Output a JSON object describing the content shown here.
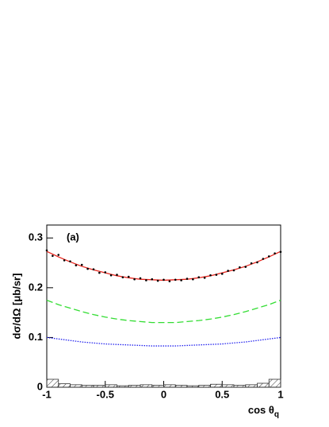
{
  "chart_data": {
    "type": "line",
    "annotation": "(a)",
    "y_label": "dσ/dΩ [μb/sr]",
    "x_label": {
      "text": "cos θ",
      "subscript": "q"
    },
    "xlim": [
      -1,
      1
    ],
    "ylim": [
      0,
      0.326
    ],
    "xticks": [
      -1,
      -0.5,
      0,
      0.5,
      1
    ],
    "yticks": [
      0,
      0.1,
      0.2,
      0.3
    ],
    "x": [
      -1,
      -0.9,
      -0.8,
      -0.7,
      -0.6,
      -0.5,
      -0.4,
      -0.3,
      -0.2,
      -0.1,
      0,
      0.1,
      0.2,
      0.3,
      0.4,
      0.5,
      0.6,
      0.7,
      0.8,
      0.9,
      1
    ],
    "series": [
      {
        "color": "#e8251d",
        "dash": "solid",
        "values": [
          0.273,
          0.262,
          0.252,
          0.243,
          0.236,
          0.23,
          0.224,
          0.22,
          0.217,
          0.216,
          0.215,
          0.216,
          0.217,
          0.22,
          0.224,
          0.23,
          0.236,
          0.243,
          0.252,
          0.262,
          0.273
        ]
      },
      {
        "color": "#33dd33",
        "dash": "dashed",
        "values": [
          0.175,
          0.166,
          0.159,
          0.152,
          0.146,
          0.141,
          0.137,
          0.134,
          0.132,
          0.13,
          0.13,
          0.13,
          0.132,
          0.134,
          0.137,
          0.141,
          0.146,
          0.152,
          0.159,
          0.166,
          0.175
        ]
      },
      {
        "color": "#2222ee",
        "dash": "dotted",
        "values": [
          0.1,
          0.097,
          0.094,
          0.091,
          0.089,
          0.087,
          0.086,
          0.085,
          0.084,
          0.083,
          0.083,
          0.083,
          0.084,
          0.085,
          0.086,
          0.087,
          0.089,
          0.091,
          0.094,
          0.097,
          0.1
        ]
      }
    ],
    "points": {
      "color": "#000000",
      "x": [
        -1,
        -0.95,
        -0.9,
        -0.85,
        -0.8,
        -0.75,
        -0.7,
        -0.65,
        -0.6,
        -0.55,
        -0.5,
        -0.45,
        -0.4,
        -0.35,
        -0.3,
        -0.25,
        -0.2,
        -0.15,
        -0.1,
        -0.05,
        0,
        0.05,
        0.1,
        0.15,
        0.2,
        0.25,
        0.3,
        0.35,
        0.4,
        0.45,
        0.5,
        0.55,
        0.6,
        0.65,
        0.7,
        0.75,
        0.8,
        0.85,
        0.9,
        0.95,
        1
      ],
      "values": [
        0.275,
        0.264,
        0.266,
        0.255,
        0.253,
        0.245,
        0.246,
        0.238,
        0.237,
        0.23,
        0.231,
        0.225,
        0.226,
        0.221,
        0.222,
        0.217,
        0.219,
        0.215,
        0.217,
        0.214,
        0.216,
        0.213,
        0.216,
        0.215,
        0.218,
        0.217,
        0.221,
        0.22,
        0.225,
        0.226,
        0.228,
        0.234,
        0.235,
        0.241,
        0.242,
        0.249,
        0.251,
        0.258,
        0.263,
        0.269,
        0.272
      ]
    },
    "histogram": {
      "bins": [
        -1,
        -0.9,
        -0.8,
        -0.7,
        -0.6,
        -0.5,
        -0.4,
        -0.3,
        -0.2,
        -0.1,
        0,
        0.1,
        0.2,
        0.3,
        0.4,
        0.5,
        0.6,
        0.7,
        0.8,
        0.9,
        1
      ],
      "counts": [
        0.016,
        0.007,
        0.005,
        0.004,
        0.004,
        0.005,
        0.003,
        0.004,
        0.005,
        0.004,
        0.005,
        0.004,
        0.003,
        0.004,
        0.006,
        0.005,
        0.004,
        0.005,
        0.008,
        0.016
      ]
    }
  }
}
